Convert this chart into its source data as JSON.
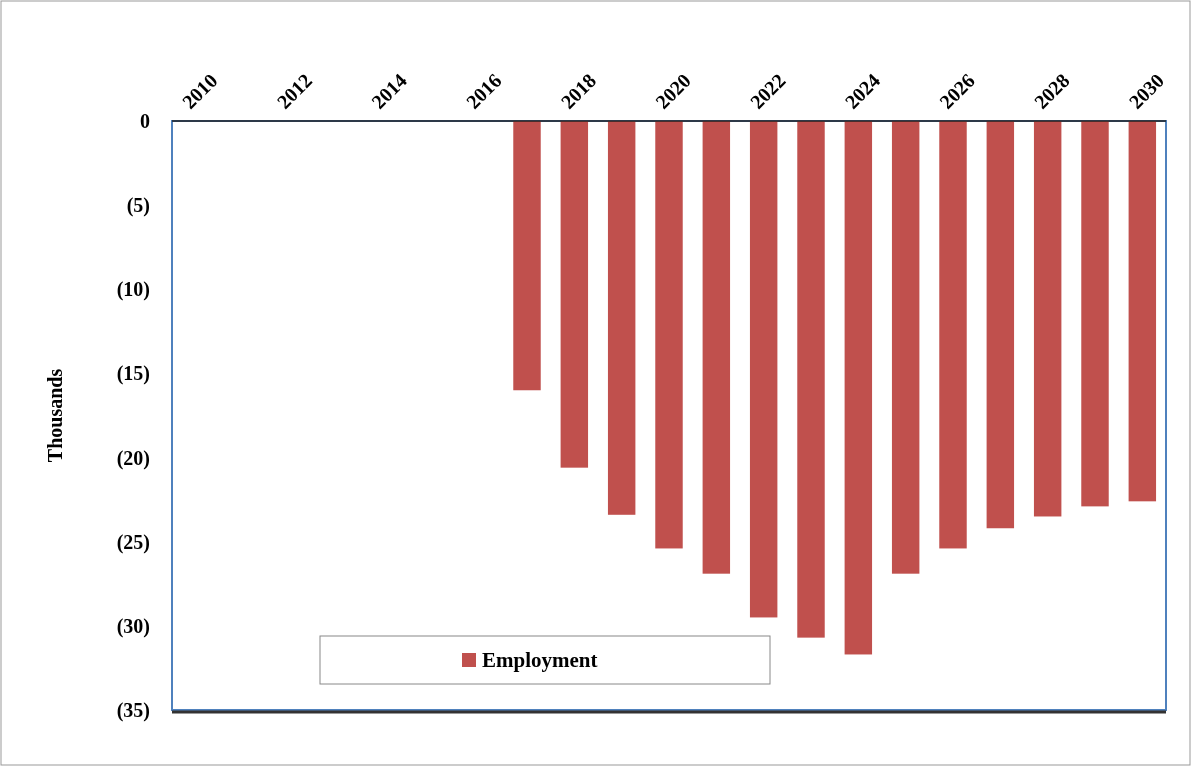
{
  "chart_data": {
    "type": "bar",
    "ylabel": "Thousands",
    "categories": [
      "2010",
      null,
      "2012",
      null,
      "2014",
      null,
      "2016",
      null,
      "2018",
      null,
      "2020",
      null,
      "2022",
      null,
      "2024",
      null,
      "2026",
      null,
      "2028",
      null,
      "2030"
    ],
    "series": [
      {
        "name": "Employment",
        "color": "#c0504d",
        "values": [
          null,
          null,
          null,
          null,
          null,
          null,
          null,
          -16.0,
          -20.6,
          -23.4,
          -25.4,
          -26.9,
          -29.5,
          -30.7,
          -31.7,
          -26.9,
          -25.4,
          -24.2,
          -23.5,
          -22.9,
          -22.6
        ]
      }
    ],
    "ylim": [
      -35,
      0
    ],
    "yticks": [
      {
        "value": 0,
        "label": "0"
      },
      {
        "value": -5,
        "label": "(5)"
      },
      {
        "value": -10,
        "label": "(10)"
      },
      {
        "value": -15,
        "label": "(15)"
      },
      {
        "value": -20,
        "label": "(20)"
      },
      {
        "value": -25,
        "label": "(25)"
      },
      {
        "value": -30,
        "label": "(30)"
      },
      {
        "value": -35,
        "label": "(35)"
      }
    ],
    "legend": "bottom",
    "grid": false
  }
}
